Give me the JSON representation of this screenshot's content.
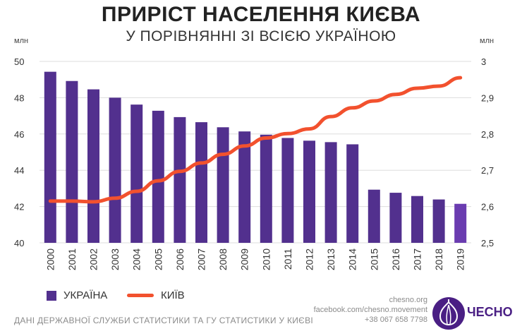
{
  "header": {
    "title": "ПРИРІСТ НАСЕЛЕННЯ КИЄВА",
    "subtitle": "У ПОРІВНЯННІ ЗІ ВСІЄЮ УКРАЇНОЮ",
    "unit_left": "млн",
    "unit_right": "млн"
  },
  "legend": {
    "ukraine_label": "УКРАЇНА",
    "kyiv_label": "КИЇВ"
  },
  "footer": {
    "source": "ДАНІ ДЕРЖАВНОЇ СЛУЖБИ СТАТИСТИКИ ТА ГУ СТАТИСТИКИ У КИЄВІ",
    "site": "chesno.org",
    "facebook": "facebook.com/chesno.movement",
    "phone": "+38 067 658 7798",
    "logo_text": "ЧЕСНО"
  },
  "colors": {
    "bar": "#52308e",
    "bar_last": "#6a3cb0",
    "line": "#f2512e",
    "grid": "#dddddd",
    "logo": "#4a1f84"
  },
  "chart_data": {
    "type": "bar",
    "categories": [
      "2000",
      "2001",
      "2002",
      "2003",
      "2004",
      "2005",
      "2006",
      "2007",
      "2008",
      "2009",
      "2010",
      "2011",
      "2012",
      "2013",
      "2014",
      "2015",
      "2016",
      "2017",
      "2018",
      "2019"
    ],
    "series": [
      {
        "name": "УКРАЇНА",
        "type": "bar",
        "axis": "left",
        "values": [
          49.43,
          48.92,
          48.46,
          48.0,
          47.62,
          47.28,
          46.93,
          46.65,
          46.37,
          46.14,
          45.96,
          45.78,
          45.63,
          45.55,
          45.43,
          42.93,
          42.76,
          42.58,
          42.39,
          42.15
        ]
      },
      {
        "name": "КИЇВ",
        "type": "line",
        "axis": "right",
        "values": [
          2.615,
          2.615,
          2.613,
          2.623,
          2.642,
          2.671,
          2.697,
          2.72,
          2.744,
          2.767,
          2.789,
          2.801,
          2.814,
          2.848,
          2.872,
          2.891,
          2.909,
          2.926,
          2.932,
          2.955
        ]
      }
    ],
    "ylim_left": [
      40,
      50
    ],
    "yticks_left": [
      "40",
      "42",
      "44",
      "46",
      "48",
      "50"
    ],
    "ylim_right": [
      2.5,
      3.0
    ],
    "yticks_right": [
      "2,5",
      "2,6",
      "2,7",
      "2,8",
      "2,9",
      "3"
    ],
    "grid": true,
    "legend_position": "bottom-left"
  }
}
